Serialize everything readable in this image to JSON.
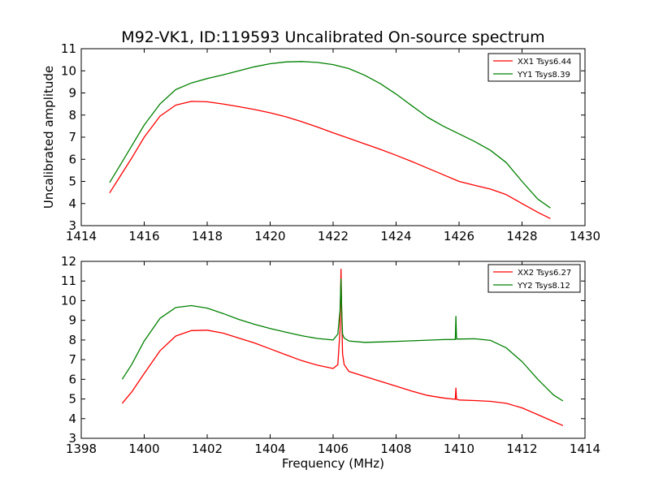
{
  "figure": {
    "title": "M92-VK1, ID:119593 Uncalibrated On-source spectrum",
    "ylabel": "Uncalibrated amplitude",
    "xlabel": "Frequency (MHz)"
  },
  "chart_data": [
    {
      "type": "line",
      "xlim": [
        1414,
        1430
      ],
      "ylim": [
        3,
        11
      ],
      "xticks": [
        1414,
        1416,
        1418,
        1420,
        1422,
        1424,
        1426,
        1428,
        1430
      ],
      "yticks": [
        3,
        4,
        5,
        6,
        7,
        8,
        9,
        10,
        11
      ],
      "legend_position": "top-right",
      "grid": false,
      "series": [
        {
          "name": "XX1 Tsys6.44",
          "color": "#ff0000",
          "x": [
            1414.9,
            1415.2,
            1415.6,
            1416.0,
            1416.5,
            1417.0,
            1417.5,
            1418.0,
            1418.5,
            1419.0,
            1419.5,
            1420.0,
            1420.5,
            1421.0,
            1421.5,
            1422.0,
            1422.5,
            1423.0,
            1423.5,
            1424.0,
            1424.5,
            1425.0,
            1425.5,
            1426.0,
            1426.5,
            1427.0,
            1427.5,
            1428.0,
            1428.5,
            1428.9
          ],
          "y": [
            4.48,
            5.15,
            6.05,
            7.0,
            7.95,
            8.45,
            8.62,
            8.6,
            8.5,
            8.38,
            8.25,
            8.1,
            7.92,
            7.7,
            7.46,
            7.2,
            6.95,
            6.7,
            6.45,
            6.18,
            5.9,
            5.6,
            5.3,
            5.0,
            4.82,
            4.65,
            4.4,
            4.0,
            3.6,
            3.32
          ]
        },
        {
          "name": "YY1 Tsys8.39",
          "color": "#008000",
          "x": [
            1414.9,
            1415.2,
            1415.6,
            1416.0,
            1416.5,
            1417.0,
            1417.5,
            1418.0,
            1418.5,
            1419.0,
            1419.5,
            1420.0,
            1420.5,
            1421.0,
            1421.5,
            1422.0,
            1422.5,
            1423.0,
            1423.5,
            1424.0,
            1424.5,
            1425.0,
            1425.5,
            1426.0,
            1426.5,
            1427.0,
            1427.5,
            1428.0,
            1428.5,
            1428.9
          ],
          "y": [
            4.95,
            5.65,
            6.6,
            7.55,
            8.5,
            9.15,
            9.45,
            9.65,
            9.82,
            10.0,
            10.18,
            10.32,
            10.4,
            10.42,
            10.38,
            10.28,
            10.1,
            9.8,
            9.42,
            8.95,
            8.42,
            7.9,
            7.5,
            7.15,
            6.8,
            6.4,
            5.85,
            5.0,
            4.2,
            3.8
          ]
        }
      ]
    },
    {
      "type": "line",
      "xlim": [
        1398,
        1414
      ],
      "ylim": [
        3,
        12
      ],
      "xticks": [
        1398,
        1400,
        1402,
        1404,
        1406,
        1408,
        1410,
        1412,
        1414
      ],
      "yticks": [
        3,
        4,
        5,
        6,
        7,
        8,
        9,
        10,
        11,
        12
      ],
      "xlabel": "Frequency (MHz)",
      "legend_position": "top-right",
      "grid": false,
      "series": [
        {
          "name": "XX2 Tsys6.27",
          "color": "#ff0000",
          "x": [
            1399.3,
            1399.6,
            1400.0,
            1400.5,
            1401.0,
            1401.5,
            1402.0,
            1402.5,
            1403.0,
            1403.5,
            1404.0,
            1404.5,
            1405.0,
            1405.5,
            1406.0,
            1406.15,
            1406.22,
            1406.25,
            1406.27,
            1406.3,
            1406.35,
            1406.5,
            1407.0,
            1407.5,
            1408.0,
            1408.5,
            1409.0,
            1409.5,
            1409.88,
            1409.9,
            1409.92,
            1410.0,
            1410.5,
            1411.0,
            1411.5,
            1412.0,
            1412.5,
            1413.0,
            1413.3
          ],
          "y": [
            4.78,
            5.35,
            6.3,
            7.45,
            8.2,
            8.48,
            8.5,
            8.35,
            8.1,
            7.85,
            7.55,
            7.25,
            6.95,
            6.72,
            6.55,
            6.75,
            8.5,
            11.6,
            9.5,
            7.3,
            6.75,
            6.4,
            6.15,
            5.9,
            5.65,
            5.4,
            5.18,
            5.05,
            4.98,
            5.55,
            4.98,
            4.95,
            4.92,
            4.88,
            4.78,
            4.55,
            4.2,
            3.85,
            3.65
          ]
        },
        {
          "name": "YY2 Tsys8.12",
          "color": "#008000",
          "x": [
            1399.3,
            1399.6,
            1400.0,
            1400.5,
            1401.0,
            1401.5,
            1402.0,
            1402.5,
            1403.0,
            1403.5,
            1404.0,
            1404.5,
            1405.0,
            1405.5,
            1406.0,
            1406.15,
            1406.22,
            1406.25,
            1406.27,
            1406.3,
            1406.35,
            1406.5,
            1407.0,
            1407.5,
            1408.0,
            1408.5,
            1409.0,
            1409.5,
            1409.88,
            1409.9,
            1409.92,
            1410.0,
            1410.5,
            1411.0,
            1411.5,
            1412.0,
            1412.5,
            1413.0,
            1413.3
          ],
          "y": [
            6.0,
            6.75,
            7.95,
            9.1,
            9.65,
            9.75,
            9.62,
            9.35,
            9.05,
            8.8,
            8.58,
            8.4,
            8.22,
            8.08,
            8.0,
            8.3,
            9.5,
            11.1,
            9.6,
            8.3,
            8.1,
            7.95,
            7.88,
            7.9,
            7.93,
            7.96,
            7.99,
            8.02,
            8.03,
            9.2,
            8.05,
            8.05,
            8.06,
            7.98,
            7.6,
            6.9,
            6.0,
            5.2,
            4.9
          ]
        }
      ]
    }
  ]
}
